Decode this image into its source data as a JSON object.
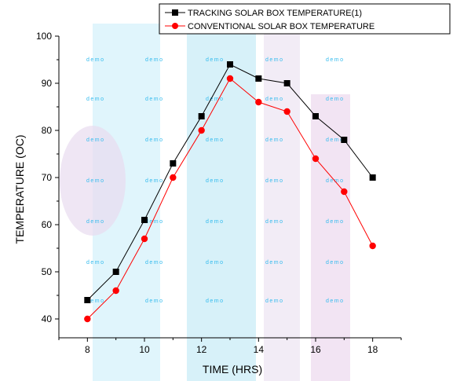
{
  "colors": {
    "series_1": "#000000",
    "series_2": "#ff0000",
    "watermark_text": "#33bbee"
  },
  "watermark": {
    "text": "demo"
  },
  "chart_data": {
    "type": "line",
    "title": "",
    "xlabel": "TIME (HRS)",
    "ylabel": "TEMPERATURE (OC)",
    "xlim": [
      7,
      19
    ],
    "ylim": [
      36,
      100
    ],
    "xticks": [
      8,
      10,
      12,
      14,
      16,
      18
    ],
    "yticks": [
      40,
      50,
      60,
      70,
      80,
      90,
      100
    ],
    "grid": false,
    "legend_position": "top-right",
    "x": [
      8,
      9,
      10,
      11,
      12,
      13,
      14,
      15,
      16,
      17,
      18
    ],
    "series": [
      {
        "name": "TRACKING SOLAR BOX TEMPERATURE(1)",
        "marker": "square",
        "color": "#000000",
        "values": [
          44,
          50,
          61,
          73,
          83,
          94,
          91,
          90,
          83,
          78,
          70
        ]
      },
      {
        "name": "CONVENTIONAL SOLAR BOX TEMPERATURE",
        "marker": "circle",
        "color": "#ff0000",
        "values": [
          40,
          46,
          57,
          70,
          80,
          91,
          86,
          84,
          74,
          67,
          55.5
        ]
      }
    ]
  }
}
